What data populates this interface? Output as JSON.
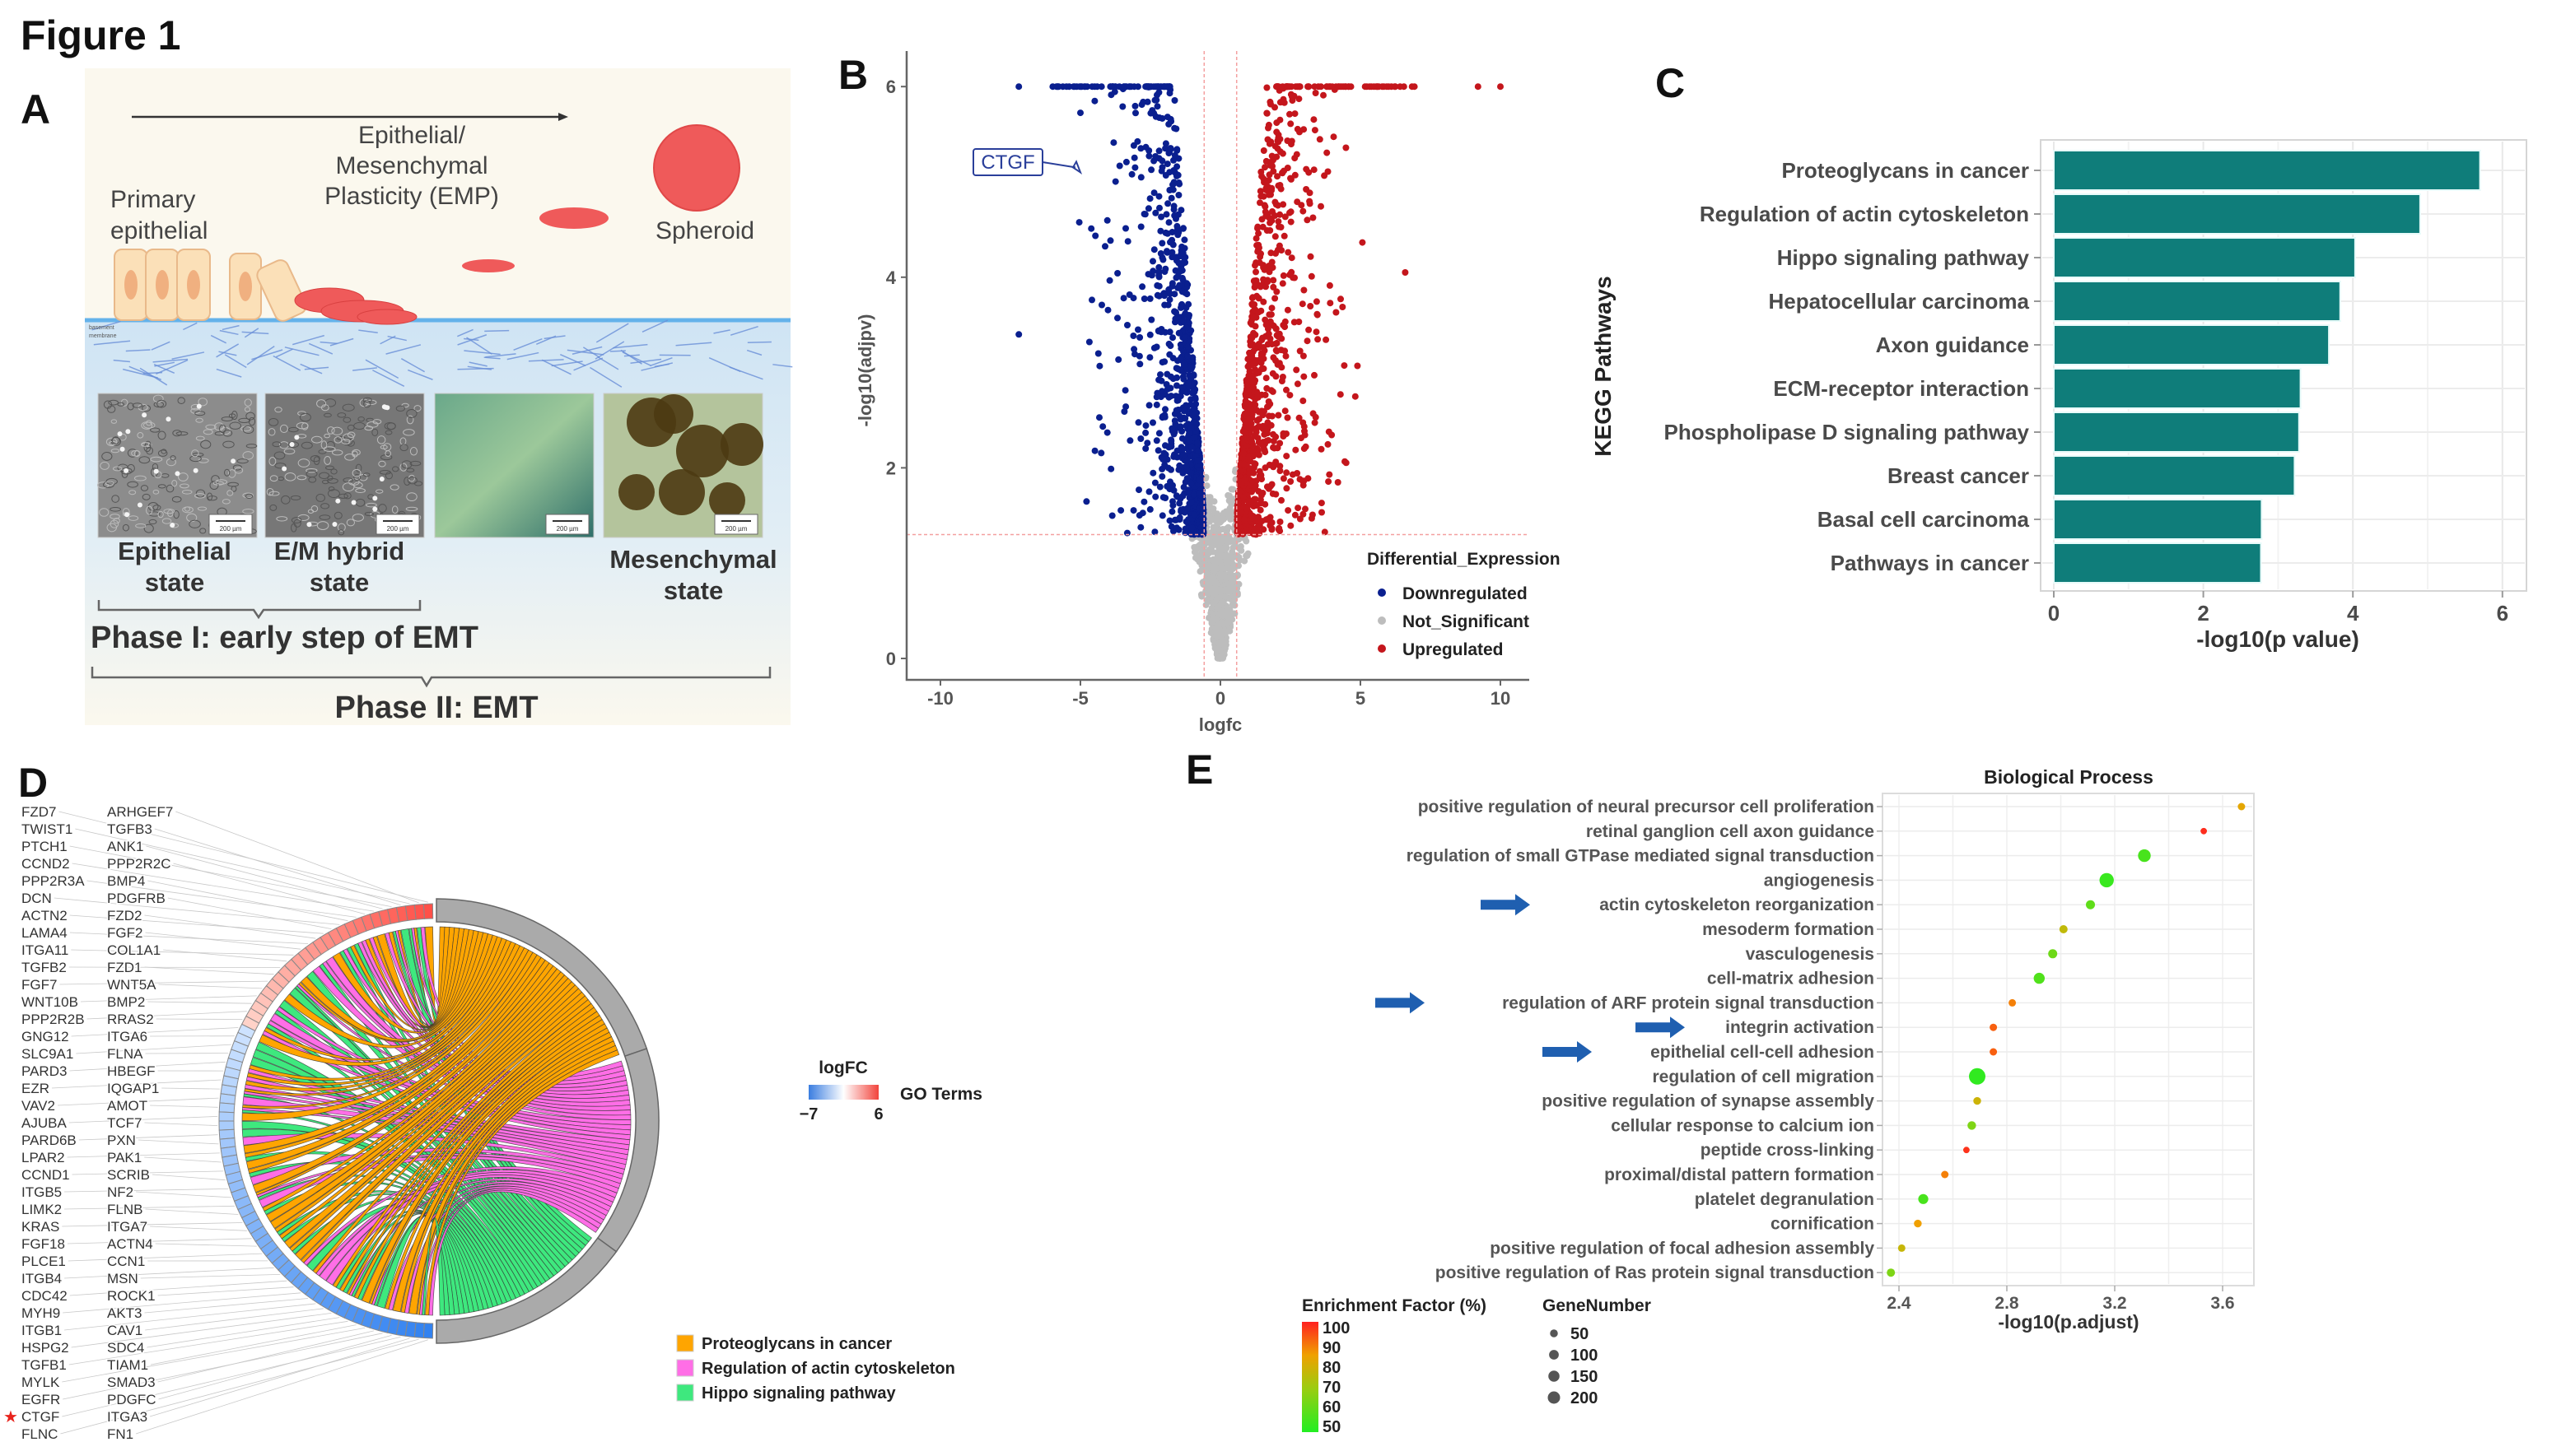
{
  "figure_title": "Figure 1",
  "panel_labels": {
    "A": "A",
    "B": "B",
    "C": "C",
    "D": "D",
    "E": "E"
  },
  "panel_a": {
    "arrow_text": [
      "Epithelial/",
      "Mesenchymal",
      "Plasticity (EMP)"
    ],
    "primary": [
      "Primary",
      "epithelial"
    ],
    "spheroid": "Spheroid",
    "membrane": [
      "basement",
      "membrane"
    ],
    "scale_bar": "200 µm",
    "states": [
      [
        "Epithelial",
        "state"
      ],
      [
        "E/M hybrid",
        "state"
      ],
      [
        "Mesenchymal",
        "state"
      ]
    ],
    "phase1": "Phase I: early step of EMT",
    "phase2": "Phase II: EMT"
  },
  "chart_data": [
    {
      "type": "scatter",
      "title": "",
      "xlabel": "logfc",
      "ylabel": "-log10(adjpv)",
      "xlim": [
        -11,
        11
      ],
      "ylim": [
        -0.25,
        6.2
      ],
      "xticks": [
        -10,
        -5,
        0,
        5,
        10
      ],
      "yticks": [
        0,
        2,
        4,
        6
      ],
      "thresholds": {
        "logfc": [
          -0.58,
          0.58
        ],
        "neg_log10_adjpv": 1.3
      },
      "legend": {
        "title": "Differential_Expression",
        "placement": "right",
        "items": [
          {
            "name": "Downregulated",
            "color": "#0a1f8f"
          },
          {
            "name": "Not_Significant",
            "color": "#bdbdbd"
          },
          {
            "name": "Upregulated",
            "color": "#c4161c"
          }
        ]
      },
      "annotation": {
        "label": "CTGF",
        "x": -5.0,
        "y": 5.1
      },
      "capped_value": 6
    },
    {
      "type": "bar",
      "orientation": "horizontal",
      "categories": [
        "Proteoglycans in cancer",
        "Regulation of actin cytoskeleton",
        "Hippo signaling pathway",
        "Hepatocellular carcinoma",
        "Axon guidance",
        "ECM-receptor interaction",
        "Phospholipase D signaling pathway",
        "Breast cancer",
        "Basal cell carcinoma",
        "Pathways in cancer"
      ],
      "values": [
        5.7,
        4.9,
        4.03,
        3.83,
        3.68,
        3.3,
        3.28,
        3.22,
        2.78,
        2.77
      ],
      "xlabel": "-log10(p value)",
      "ylabel": "KEGG Pathways",
      "xlim": [
        0,
        6.3
      ],
      "xticks": [
        0,
        2,
        4,
        6
      ],
      "color": "#0f7d7a",
      "grid": true
    },
    {
      "type": "chord",
      "terms": [
        {
          "name": "Proteoglycans in cancer",
          "color": "#ffa500"
        },
        {
          "name": "Regulation of actin cytoskeleton",
          "color": "#ff6ee6"
        },
        {
          "name": "Hippo signaling pathway",
          "color": "#3ee87e"
        }
      ],
      "logfc_legend": {
        "title": "logFC",
        "min": "−7",
        "max": "6"
      },
      "terms_legend_title": "GO Terms",
      "genes_up": [
        "FZD7",
        "ARHGEF7",
        "TWIST1",
        "TGFB3",
        "PTCH1",
        "ANK1",
        "CCND2",
        "PPP2R2C",
        "PPP2R3A",
        "BMP4",
        "DCN",
        "PDGFRB",
        "ACTN2",
        "FZD2",
        "LAMA4",
        "FGF2",
        "ITGA11",
        "COL1A1",
        "TGFB2",
        "FZD1",
        "FGF7",
        "WNT5A",
        "WNT10B",
        "BMP2",
        "PPP2R2B",
        "RRAS2"
      ],
      "genes_down": [
        "GNG12",
        "ITGA6",
        "SLC9A1",
        "FLNA",
        "PARD3",
        "HBEGF",
        "EZR",
        "IQGAP1",
        "VAV2",
        "AMOT",
        "AJUBA",
        "TCF7",
        "PARD6B",
        "PXN",
        "LPAR2",
        "PAK1",
        "CCND1",
        "SCRIB",
        "ITGB5",
        "NF2",
        "LIMK2",
        "FLNB",
        "KRAS",
        "ITGA7",
        "FGF18",
        "ACTN4",
        "PLCE1",
        "CCN1",
        "ITGB4",
        "MSN",
        "CDC42",
        "ROCK1",
        "MYH9",
        "AKT3",
        "ITGB1",
        "CAV1",
        "HSPG2",
        "SDC4",
        "TGFB1",
        "TIAM1",
        "MYLK",
        "SMAD3",
        "EGFR",
        "PDGFC",
        "CTGF",
        "ITGA3",
        "FLNC",
        "FN1"
      ],
      "highlighted_gene": "CTGF"
    },
    {
      "type": "scatter",
      "subtype": "dot",
      "title": "Biological Process",
      "xlabel": "-log10(p.adjust)",
      "xlim": [
        2.33,
        3.72
      ],
      "xticks": [
        2.4,
        2.8,
        3.2,
        3.6
      ],
      "categories": [
        "positive regulation of neural precursor cell proliferation",
        "retinal ganglion cell axon guidance",
        "regulation of small GTPase mediated signal transduction",
        "angiogenesis",
        "actin cytoskeleton reorganization",
        "mesoderm formation",
        "vasculogenesis",
        "cell-matrix adhesion",
        "regulation of ARF protein signal transduction",
        "integrin activation",
        "epithelial cell-cell adhesion",
        "regulation of cell migration",
        "positive regulation of synapse assembly",
        "cellular response to calcium ion",
        "peptide cross-linking",
        "proximal/distal pattern formation",
        "platelet degranulation",
        "cornification",
        "positive regulation of focal adhesion assembly",
        "positive regulation of Ras protein signal transduction"
      ],
      "x": [
        3.67,
        3.53,
        3.31,
        3.17,
        3.11,
        3.01,
        2.97,
        2.92,
        2.82,
        2.75,
        2.75,
        2.69,
        2.69,
        2.67,
        2.65,
        2.57,
        2.49,
        2.47,
        2.41,
        2.37
      ],
      "enrichment_factor": [
        78,
        98,
        55,
        53,
        58,
        72,
        60,
        56,
        85,
        90,
        90,
        52,
        74,
        62,
        97,
        85,
        55,
        80,
        73,
        62
      ],
      "gene_number": [
        40,
        30,
        120,
        150,
        60,
        50,
        60,
        90,
        40,
        40,
        40,
        200,
        45,
        55,
        30,
        40,
        75,
        45,
        40,
        50
      ],
      "highlighted_rows": [
        4,
        8,
        9,
        10
      ],
      "highlight_color": "#1f5fb0",
      "color_legend": {
        "title": "Enrichment Factor (%)",
        "labels": [
          "100",
          "90",
          "80",
          "70",
          "60",
          "50"
        ]
      },
      "size_legend": {
        "title": "GeneNumber",
        "labels": [
          "50",
          "100",
          "150",
          "200"
        ],
        "values": [
          50,
          100,
          150,
          200
        ]
      }
    }
  ]
}
